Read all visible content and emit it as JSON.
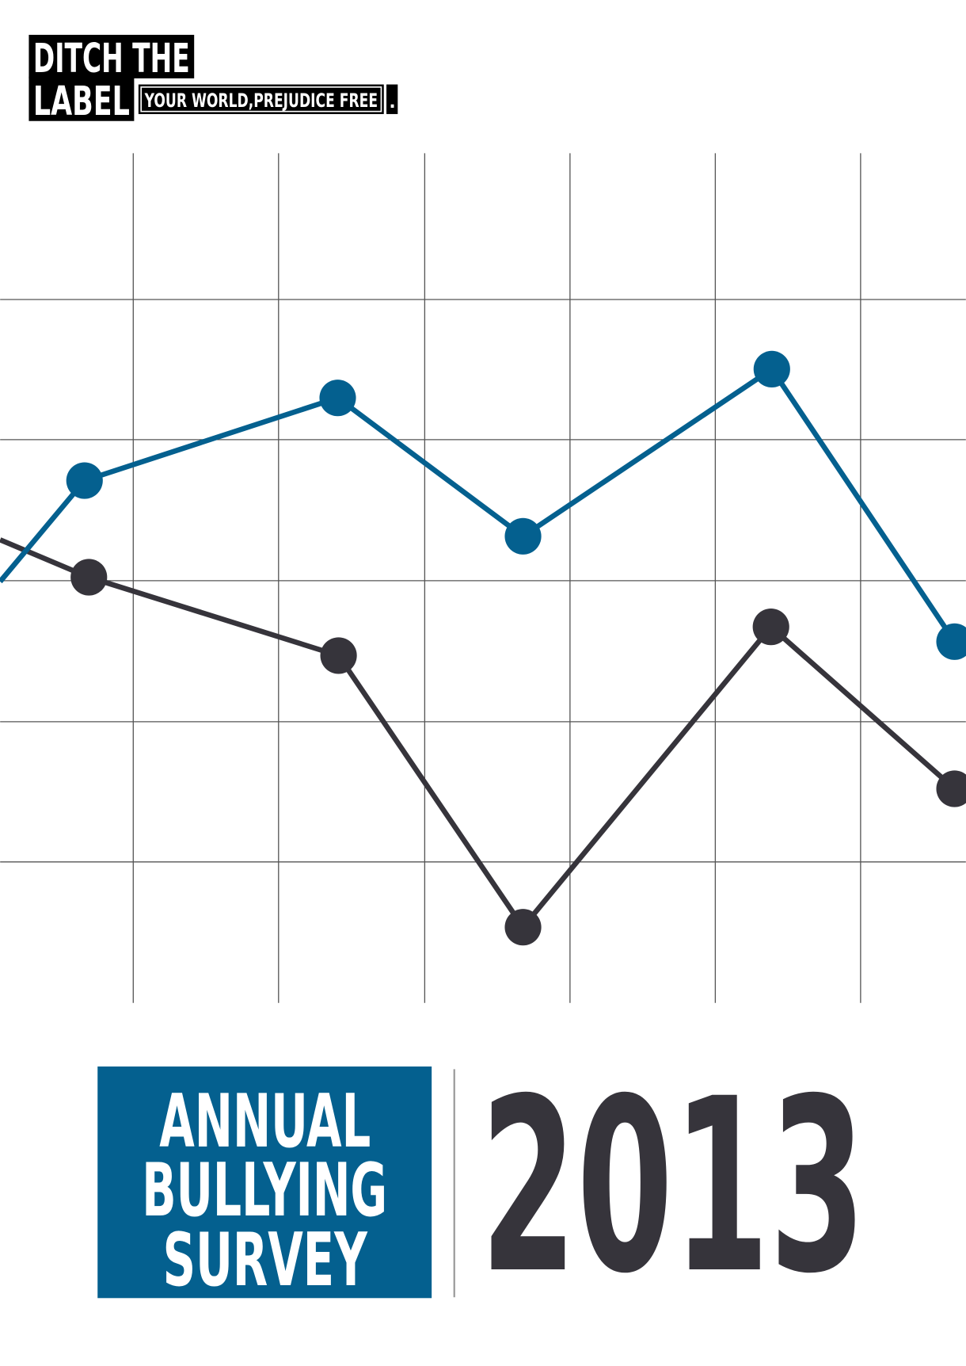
{
  "logo": {
    "line1": "DITCH THE",
    "line2": "LABEL",
    "tagline": "YOUR WORLD,PREJUDICE FREE",
    "mark": "."
  },
  "title": {
    "lines": [
      "ANNUAL",
      "BULLYING",
      "SURVEY"
    ],
    "year": "2013"
  }
}
